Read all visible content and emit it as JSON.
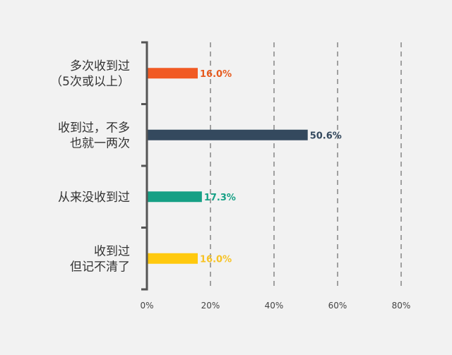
{
  "chart_data": {
    "type": "bar",
    "orientation": "horizontal",
    "categories": [
      [
        "多次收到过",
        "（5次或以上）"
      ],
      [
        "收到过，不多",
        "也就一两次"
      ],
      [
        "从来没收到过"
      ],
      [
        "收到过",
        "但记不清了"
      ]
    ],
    "values": [
      16.0,
      50.6,
      17.3,
      16.0
    ],
    "value_labels": [
      "16.0%",
      "50.6%",
      "17.3%",
      "16.0%"
    ],
    "bar_colors": [
      "#f15a24",
      "#34495e",
      "#16a085",
      "#ffc90e"
    ],
    "label_colors": [
      "#e65a1e",
      "#34495e",
      "#16a085",
      "#f7c325"
    ],
    "x_ticks": [
      "0%",
      "20%",
      "40%",
      "60%",
      "80%"
    ],
    "x_tick_values": [
      0,
      20,
      40,
      60,
      80
    ],
    "xlim": [
      0,
      80
    ],
    "grid": "vertical-dashed",
    "title": "",
    "xlabel": "",
    "ylabel": ""
  }
}
